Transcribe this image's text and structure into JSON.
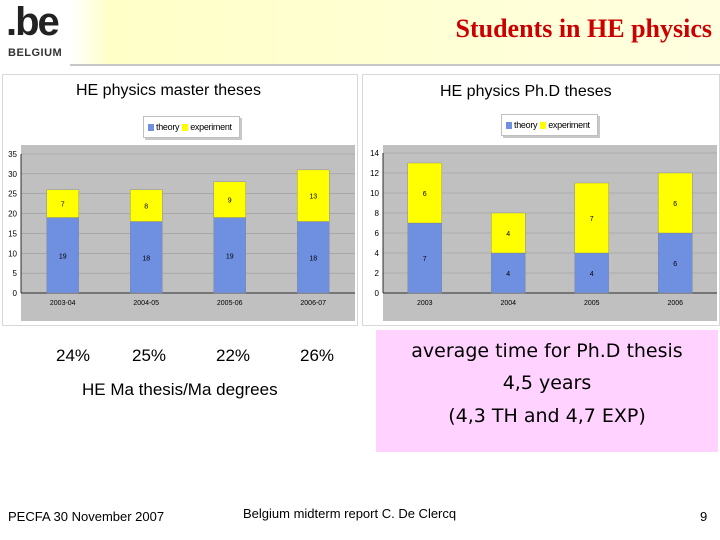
{
  "slide": {
    "title": "Students in HE physics",
    "logo_text": ".be",
    "logo_country": "BELGIUM"
  },
  "chart_data": [
    {
      "type": "bar",
      "stacked": true,
      "title": "HE physics master theses",
      "categories": [
        "2003-04",
        "2004-05",
        "2005-06",
        "2006-07"
      ],
      "series": [
        {
          "name": "theory",
          "values": [
            19,
            18,
            19,
            18
          ],
          "color": "#6f8fe0"
        },
        {
          "name": "experiment",
          "values": [
            7,
            8,
            9,
            13
          ],
          "color": "#ffff00"
        }
      ],
      "ylim": [
        0,
        35
      ],
      "yticks": [
        0,
        5,
        10,
        15,
        20,
        25,
        30,
        35
      ],
      "grid": true,
      "legend": "top"
    },
    {
      "type": "bar",
      "stacked": true,
      "title": "HE physics Ph.D theses",
      "categories": [
        "2003",
        "2004",
        "2005",
        "2006"
      ],
      "series": [
        {
          "name": "theory",
          "values": [
            7,
            4,
            4,
            6
          ],
          "color": "#6f8fe0"
        },
        {
          "name": "experiment",
          "values": [
            6,
            4,
            7,
            6
          ],
          "color": "#ffff00"
        }
      ],
      "ylim": [
        0,
        14
      ],
      "yticks": [
        0,
        2,
        4,
        6,
        8,
        10,
        12,
        14
      ],
      "grid": true,
      "legend": "top"
    }
  ],
  "ratios": [
    "24%",
    "25%",
    "22%",
    "26%"
  ],
  "ratio_caption": "HE Ma thesis/Ma degrees",
  "phd_info": {
    "line1": "average time for Ph.D thesis",
    "line2": "4,5 years",
    "line3": "(4,3 TH and 4,7 EXP)"
  },
  "footer": {
    "left": "PECFA 30 November 2007",
    "center": "Belgium midterm report C. De Clercq",
    "page": "9"
  },
  "colors": {
    "title": "#cc0000",
    "theory": "#6f8fe0",
    "experiment": "#ffff00",
    "info_box": "#ffd2ff"
  }
}
